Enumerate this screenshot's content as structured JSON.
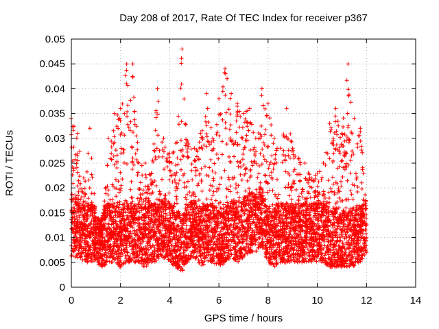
{
  "chart_data": {
    "type": "scatter",
    "title": "Day 208 of 2017, Rate Of TEC Index for receiver p367",
    "xlabel": "GPS time / hours",
    "ylabel": "ROTI / TECUs",
    "xlim": [
      0,
      14
    ],
    "ylim": [
      0,
      0.05
    ],
    "x_ticks": [
      "0",
      "2",
      "4",
      "6",
      "8",
      "10",
      "12",
      "14"
    ],
    "y_ticks": [
      "0",
      "0.005",
      "0.01",
      "0.015",
      "0.02",
      "0.025",
      "0.03",
      "0.035",
      "0.04",
      "0.045",
      "0.05"
    ],
    "grid": true,
    "marker": "plus",
    "series": [
      {
        "color": "#ff0000",
        "envelope": [
          [
            0.0,
            0.006,
            0.034
          ],
          [
            0.25,
            0.006,
            0.031
          ],
          [
            0.5,
            0.005,
            0.022
          ],
          [
            0.75,
            0.005,
            0.032
          ],
          [
            1.0,
            0.005,
            0.014
          ],
          [
            1.25,
            0.004,
            0.014
          ],
          [
            1.5,
            0.005,
            0.03
          ],
          [
            1.75,
            0.005,
            0.035
          ],
          [
            2.0,
            0.004,
            0.036
          ],
          [
            2.25,
            0.005,
            0.045
          ],
          [
            2.5,
            0.005,
            0.045
          ],
          [
            2.75,
            0.005,
            0.025
          ],
          [
            3.0,
            0.004,
            0.025
          ],
          [
            3.25,
            0.005,
            0.023
          ],
          [
            3.5,
            0.005,
            0.04
          ],
          [
            3.75,
            0.006,
            0.03
          ],
          [
            4.0,
            0.005,
            0.027
          ],
          [
            4.25,
            0.004,
            0.029
          ],
          [
            4.5,
            0.003,
            0.048
          ],
          [
            4.75,
            0.005,
            0.029
          ],
          [
            5.0,
            0.006,
            0.028
          ],
          [
            5.25,
            0.004,
            0.031
          ],
          [
            5.5,
            0.005,
            0.039
          ],
          [
            5.75,
            0.005,
            0.03
          ],
          [
            6.0,
            0.004,
            0.038
          ],
          [
            6.25,
            0.005,
            0.044
          ],
          [
            6.5,
            0.006,
            0.039
          ],
          [
            6.75,
            0.005,
            0.037
          ],
          [
            7.0,
            0.006,
            0.035
          ],
          [
            7.25,
            0.007,
            0.036
          ],
          [
            7.5,
            0.007,
            0.03
          ],
          [
            7.75,
            0.008,
            0.04
          ],
          [
            8.0,
            0.005,
            0.037
          ],
          [
            8.25,
            0.004,
            0.03
          ],
          [
            8.5,
            0.005,
            0.028
          ],
          [
            8.75,
            0.005,
            0.036
          ],
          [
            9.0,
            0.005,
            0.028
          ],
          [
            9.25,
            0.005,
            0.026
          ],
          [
            9.5,
            0.005,
            0.025
          ],
          [
            9.75,
            0.005,
            0.022
          ],
          [
            10.0,
            0.005,
            0.023
          ],
          [
            10.25,
            0.005,
            0.025
          ],
          [
            10.5,
            0.004,
            0.033
          ],
          [
            10.75,
            0.004,
            0.036
          ],
          [
            11.0,
            0.004,
            0.031
          ],
          [
            11.25,
            0.004,
            0.045
          ],
          [
            11.5,
            0.004,
            0.034
          ],
          [
            11.75,
            0.005,
            0.032
          ],
          [
            12.0,
            0.007,
            0.018
          ]
        ]
      }
    ]
  }
}
